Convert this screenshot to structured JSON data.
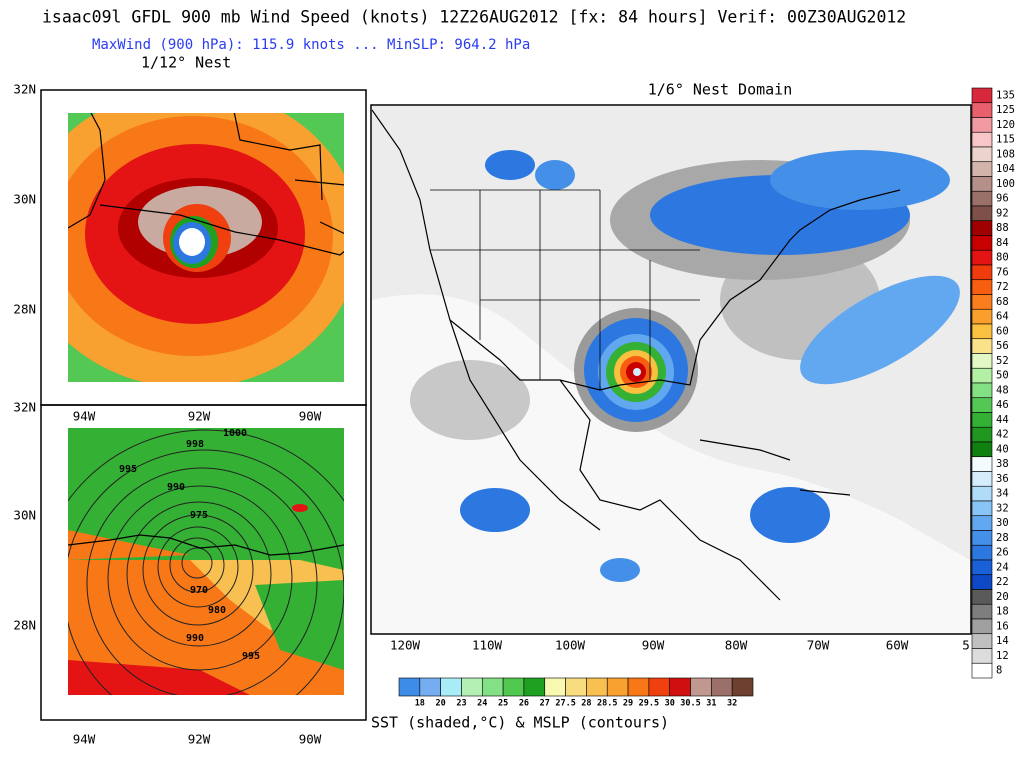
{
  "header": {
    "title": "isaac09l GFDL 900 mb Wind Speed (knots) 12Z26AUG2012 [fx: 84 hours] Verif: 00Z30AUG2012",
    "subtitle": "MaxWind (900 hPa): 115.9 knots ... MinSLP: 964.2 hPa",
    "nest_label": "1/12° Nest"
  },
  "inner_nest": {
    "lat_labels_top": [
      "32N",
      "30N",
      "28N"
    ],
    "lon_labels_middle": [
      "94W",
      "92W",
      "90W"
    ],
    "lat_labels_bottom": [
      "32N",
      "30N",
      "28N"
    ],
    "lon_labels_bottom": [
      "94W",
      "92W",
      "90W"
    ],
    "pressure_contour_labels": [
      "998",
      "1000",
      "995",
      "990",
      "975",
      "970",
      "980",
      "990",
      "995"
    ]
  },
  "outer_domain": {
    "title": "1/6° Nest Domain",
    "lon_labels": [
      "120W",
      "110W",
      "100W",
      "90W",
      "80W",
      "70W",
      "60W",
      "5"
    ]
  },
  "wind_colorbar": {
    "labels": [
      135,
      125,
      120,
      115,
      108,
      104,
      100,
      96,
      92,
      88,
      84,
      80,
      76,
      72,
      68,
      64,
      60,
      56,
      52,
      50,
      48,
      46,
      44,
      42,
      40,
      38,
      36,
      34,
      32,
      30,
      28,
      26,
      24,
      22,
      20,
      18,
      16,
      14,
      12,
      8
    ],
    "colors": [
      "#d8283c",
      "#e8606c",
      "#f29aa2",
      "#f8c6c6",
      "#ecd4cc",
      "#d2b4aa",
      "#b49088",
      "#9a7068",
      "#7e5048",
      "#a00000",
      "#c80000",
      "#e41414",
      "#f03c0c",
      "#f85e10",
      "#fa7e1e",
      "#fa9e2c",
      "#fac040",
      "#fae28a",
      "#e2f8c4",
      "#b4f0a4",
      "#84e084",
      "#54c854",
      "#34b034",
      "#209820",
      "#108010",
      "#f4fbff",
      "#d4ecfc",
      "#b0dcfa",
      "#88c4f6",
      "#62a8f0",
      "#4490e8",
      "#2c78e0",
      "#1a60d6",
      "#0e48c6",
      "#5a5a5a",
      "#7e7e7e",
      "#a0a0a0",
      "#c0c0c0",
      "#dcdcdc",
      "#ffffff"
    ]
  },
  "sst_colorbar": {
    "labels": [
      18,
      20,
      23,
      24,
      25,
      26,
      27,
      27.5,
      28,
      28.5,
      29,
      29.5,
      30,
      30.5,
      31,
      32
    ],
    "colors": [
      "#3c8ce8",
      "#74aef0",
      "#a8ecf8",
      "#b4f0b4",
      "#84e084",
      "#50c850",
      "#20a020",
      "#f8f8b0",
      "#f8dc80",
      "#f8c050",
      "#f8a030",
      "#f87818",
      "#f04010",
      "#d01010",
      "#c09890",
      "#9a7068",
      "#6e4030"
    ],
    "caption": "SST (shaded,°C) & MSLP (contours)"
  }
}
